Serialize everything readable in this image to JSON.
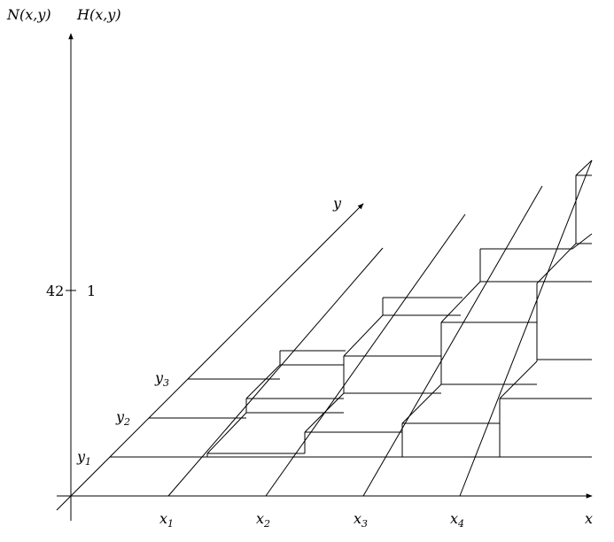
{
  "axis_labels": {
    "z_left": "N(x,y)",
    "z_right": "H(x,y)",
    "x": "x",
    "y": "y"
  },
  "z_tick": {
    "left_value": "42",
    "right_value": "1"
  },
  "x_ticks": [
    "x1",
    "x2",
    "x3",
    "x4"
  ],
  "y_ticks": [
    "y1",
    "y2",
    "y3"
  ]
}
